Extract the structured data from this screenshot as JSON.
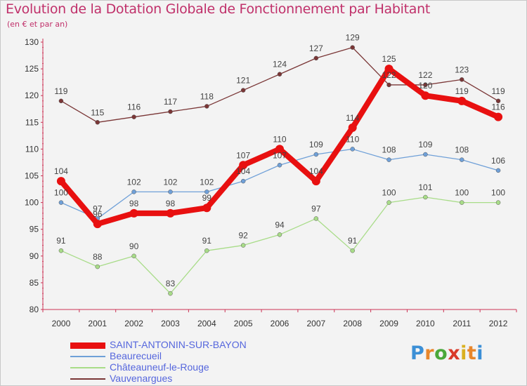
{
  "header": {
    "title": "Evolution de la Dotation Globale de Fonctionnement par Habitant",
    "subtitle": "(en € et par an)"
  },
  "brand": {
    "letters": [
      "P",
      "r",
      "o",
      "x",
      "i",
      "t",
      "i"
    ],
    "colors": [
      "#3b8fd6",
      "#e8862a",
      "#4aa83a",
      "#d93a2a",
      "#d9b020",
      "#e8862a",
      "#3b8fd6"
    ]
  },
  "chart_data": {
    "type": "line",
    "x": [
      "2000",
      "2001",
      "2002",
      "2003",
      "2004",
      "2005",
      "2006",
      "2007",
      "2008",
      "2009",
      "2010",
      "2011",
      "2012"
    ],
    "ylim": [
      80,
      130
    ],
    "yticks": [
      80,
      85,
      90,
      95,
      100,
      105,
      110,
      115,
      120,
      125,
      130
    ],
    "grid": false,
    "legend_position": "bottom",
    "series": [
      {
        "name": "SAINT-ANTONIN-SUR-BAYON",
        "color": "#e81010",
        "values": [
          104,
          96,
          98,
          98,
          99,
          107,
          110,
          104,
          114,
          125,
          120,
          119,
          116
        ]
      },
      {
        "name": "Beaurecueil",
        "color": "#6fa0d8",
        "values": [
          100,
          97,
          102,
          102,
          102,
          104,
          107,
          109,
          110,
          108,
          109,
          108,
          106
        ]
      },
      {
        "name": "Châteauneuf-le-Rouge",
        "color": "#a8dc88",
        "values": [
          91,
          88,
          90,
          83,
          91,
          92,
          94,
          97,
          91,
          100,
          101,
          100,
          100
        ]
      },
      {
        "name": "Vauvenargues",
        "color": "#7a3636",
        "values": [
          119,
          115,
          116,
          117,
          118,
          121,
          124,
          127,
          129,
          122,
          122,
          123,
          119
        ]
      }
    ]
  }
}
